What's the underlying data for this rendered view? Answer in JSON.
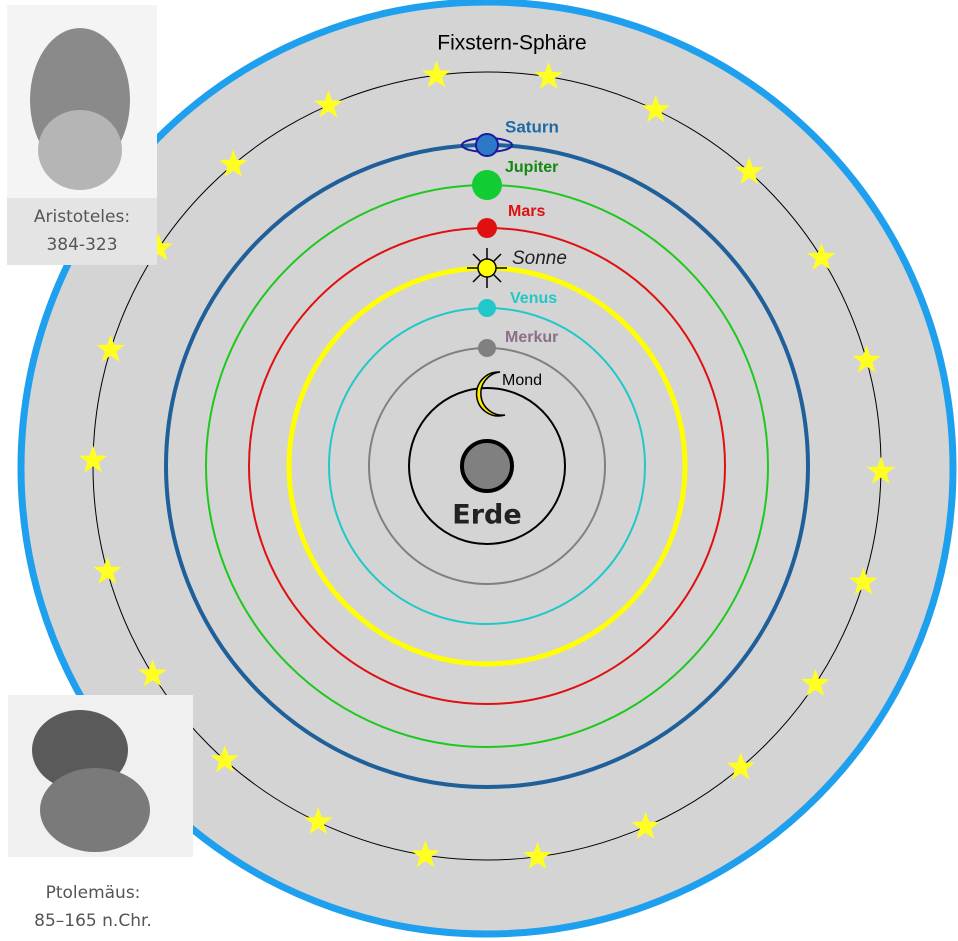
{
  "title": "Fixstern-Sphäre",
  "bodies": [
    {
      "label": "Saturn"
    },
    {
      "label": "Jupiter"
    },
    {
      "label": "Mars"
    },
    {
      "label": "Sonne"
    },
    {
      "label": "Venus"
    },
    {
      "label": "Merkur"
    },
    {
      "label": "Mond"
    }
  ],
  "earth": {
    "label": "Erde"
  },
  "portraits": [
    {
      "name": "Aristoteles:",
      "dates": "384-323"
    },
    {
      "name": "Ptolemäus:",
      "dates": "85–165 n.Chr."
    }
  ]
}
